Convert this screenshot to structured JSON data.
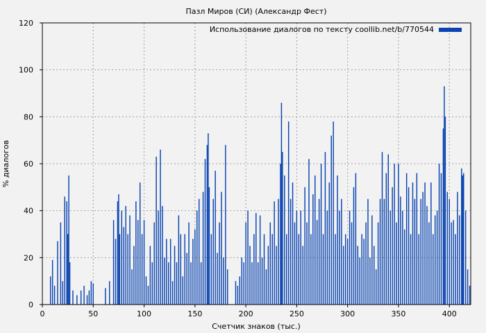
{
  "colors": {
    "background": "#f2f2f2",
    "bar": "#0a44b0",
    "grid": "#a0a0a0",
    "axis": "#000000"
  },
  "chart_data": {
    "type": "bar",
    "title": "Пазл Миров (СИ) (Александр Фест)",
    "xlabel": "Счетчик знаков (тыс.)",
    "ylabel": "% диалогов",
    "xlim": [
      0,
      421
    ],
    "ylim": [
      0,
      120
    ],
    "xticks": [
      0,
      50,
      100,
      150,
      200,
      250,
      300,
      350,
      400
    ],
    "yticks": [
      0,
      20,
      40,
      60,
      80,
      100,
      120
    ],
    "grid": true,
    "legend_position": "top-right",
    "series": [
      {
        "name": "Использование диалогов по тексту coollib.net/b/770544",
        "bin_width": 0.5,
        "x": [
          8,
          10,
          12,
          15,
          18,
          20,
          22,
          24,
          25,
          26,
          27,
          30,
          34,
          38,
          41,
          44,
          46,
          48,
          50,
          62,
          66,
          70,
          72,
          74,
          75,
          76,
          78,
          80,
          82,
          84,
          86,
          88,
          90,
          92,
          94,
          96,
          98,
          100,
          102,
          104,
          106,
          108,
          110,
          112,
          114,
          116,
          118,
          120,
          122,
          124,
          126,
          128,
          130,
          132,
          134,
          136,
          138,
          140,
          142,
          144,
          146,
          148,
          150,
          152,
          154,
          156,
          158,
          160,
          162,
          163,
          164,
          166,
          168,
          170,
          172,
          174,
          176,
          178,
          180,
          182,
          190,
          192,
          194,
          196,
          198,
          200,
          202,
          204,
          206,
          208,
          210,
          212,
          214,
          216,
          218,
          220,
          222,
          224,
          226,
          228,
          230,
          232,
          234,
          235,
          236,
          238,
          240,
          242,
          244,
          246,
          248,
          250,
          252,
          254,
          256,
          258,
          260,
          262,
          264,
          266,
          268,
          270,
          272,
          274,
          276,
          278,
          280,
          282,
          284,
          286,
          288,
          290,
          292,
          294,
          296,
          298,
          300,
          302,
          304,
          306,
          308,
          310,
          312,
          314,
          316,
          318,
          320,
          322,
          324,
          326,
          328,
          330,
          332,
          334,
          336,
          338,
          340,
          342,
          344,
          346,
          348,
          350,
          352,
          354,
          356,
          358,
          360,
          362,
          364,
          366,
          368,
          370,
          372,
          374,
          376,
          378,
          380,
          382,
          384,
          386,
          388,
          390,
          392,
          394,
          395,
          396,
          398,
          400,
          402,
          404,
          406,
          408,
          410,
          412,
          413,
          414,
          416,
          418,
          420
        ],
        "values": [
          12,
          19,
          8,
          27,
          35,
          10,
          46,
          44,
          30,
          55,
          18,
          6,
          4,
          6,
          8,
          4,
          6,
          10,
          9,
          7,
          10,
          36,
          28,
          44,
          47,
          30,
          40,
          33,
          42,
          30,
          38,
          15,
          25,
          44,
          36,
          52,
          30,
          36,
          12,
          8,
          25,
          18,
          35,
          63,
          40,
          66,
          42,
          20,
          28,
          18,
          28,
          10,
          25,
          18,
          38,
          30,
          12,
          30,
          22,
          35,
          18,
          28,
          32,
          40,
          45,
          18,
          48,
          62,
          68,
          73,
          50,
          30,
          45,
          57,
          22,
          35,
          48,
          20,
          68,
          15,
          10,
          8,
          12,
          20,
          18,
          35,
          40,
          25,
          18,
          30,
          39,
          18,
          38,
          20,
          30,
          15,
          25,
          35,
          30,
          44,
          25,
          45,
          60,
          86,
          65,
          55,
          30,
          78,
          45,
          52,
          35,
          40,
          30,
          40,
          25,
          50,
          35,
          62,
          30,
          47,
          55,
          36,
          45,
          60,
          30,
          65,
          40,
          52,
          72,
          78,
          30,
          55,
          40,
          45,
          25,
          30,
          28,
          40,
          35,
          50,
          56,
          25,
          20,
          30,
          28,
          35,
          45,
          20,
          38,
          25,
          15,
          35,
          45,
          65,
          45,
          56,
          64,
          40,
          50,
          60,
          35,
          60,
          46,
          40,
          32,
          56,
          50,
          30,
          52,
          45,
          56,
          30,
          45,
          48,
          52,
          42,
          35,
          52,
          30,
          38,
          40,
          60,
          56,
          75,
          93,
          80,
          48,
          45,
          35,
          36,
          30,
          48,
          38,
          58,
          55,
          56,
          40,
          15,
          8
        ]
      }
    ]
  }
}
